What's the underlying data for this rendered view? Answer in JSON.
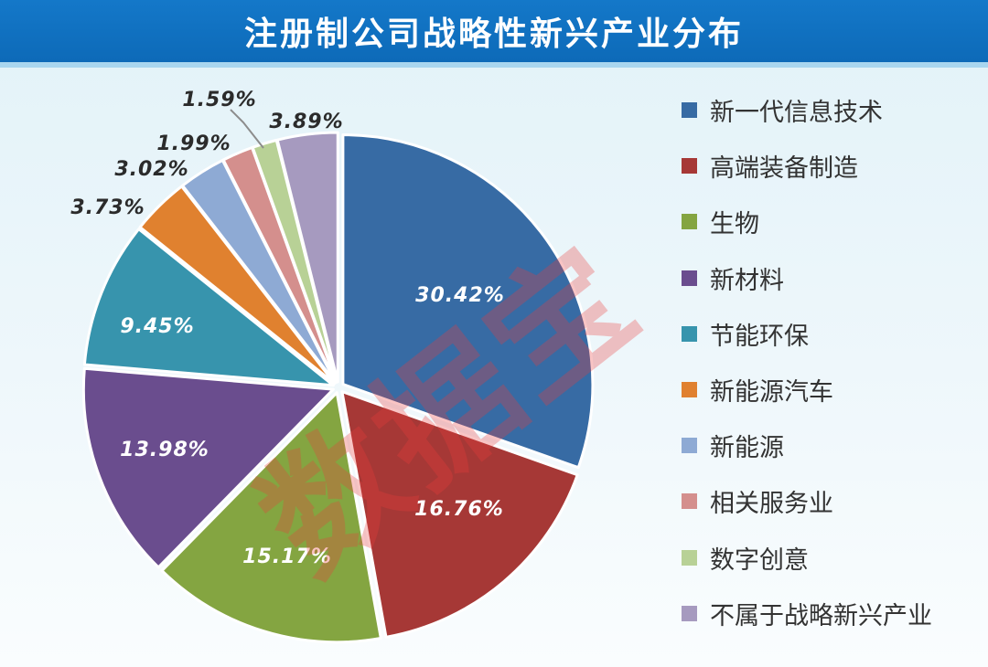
{
  "page": {
    "title": "注册制公司战略性新兴产业分布",
    "watermark": "数据宝"
  },
  "chart_data": {
    "type": "pie",
    "title": "注册制公司战略性新兴产业分布",
    "unit": "%",
    "legend_position": "right",
    "start_angle": "12 o'clock",
    "direction": "clockwise",
    "slices": [
      {
        "label": "新一代信息技术",
        "value": 30.42,
        "display": "30.42%",
        "color": "#376ba4"
      },
      {
        "label": "高端装备制造",
        "value": 16.76,
        "display": "16.76%",
        "color": "#a63836"
      },
      {
        "label": "生物",
        "value": 15.17,
        "display": "15.17%",
        "color": "#84a541"
      },
      {
        "label": "新材料",
        "value": 13.98,
        "display": "13.98%",
        "color": "#6a4d8e"
      },
      {
        "label": "节能环保",
        "value": 9.45,
        "display": "9.45%",
        "color": "#3794ad"
      },
      {
        "label": "新能源汽车",
        "value": 3.73,
        "display": "3.73%",
        "color": "#e0812f"
      },
      {
        "label": "新能源",
        "value": 3.02,
        "display": "3.02%",
        "color": "#8eaad4"
      },
      {
        "label": "相关服务业",
        "value": 1.99,
        "display": "1.99%",
        "color": "#d48f8d"
      },
      {
        "label": "数字创意",
        "value": 1.59,
        "display": "1.59%",
        "color": "#b8d196"
      },
      {
        "label": "不属于战略新兴产业",
        "value": 3.89,
        "display": "3.89%",
        "color": "#a69abf"
      }
    ]
  }
}
